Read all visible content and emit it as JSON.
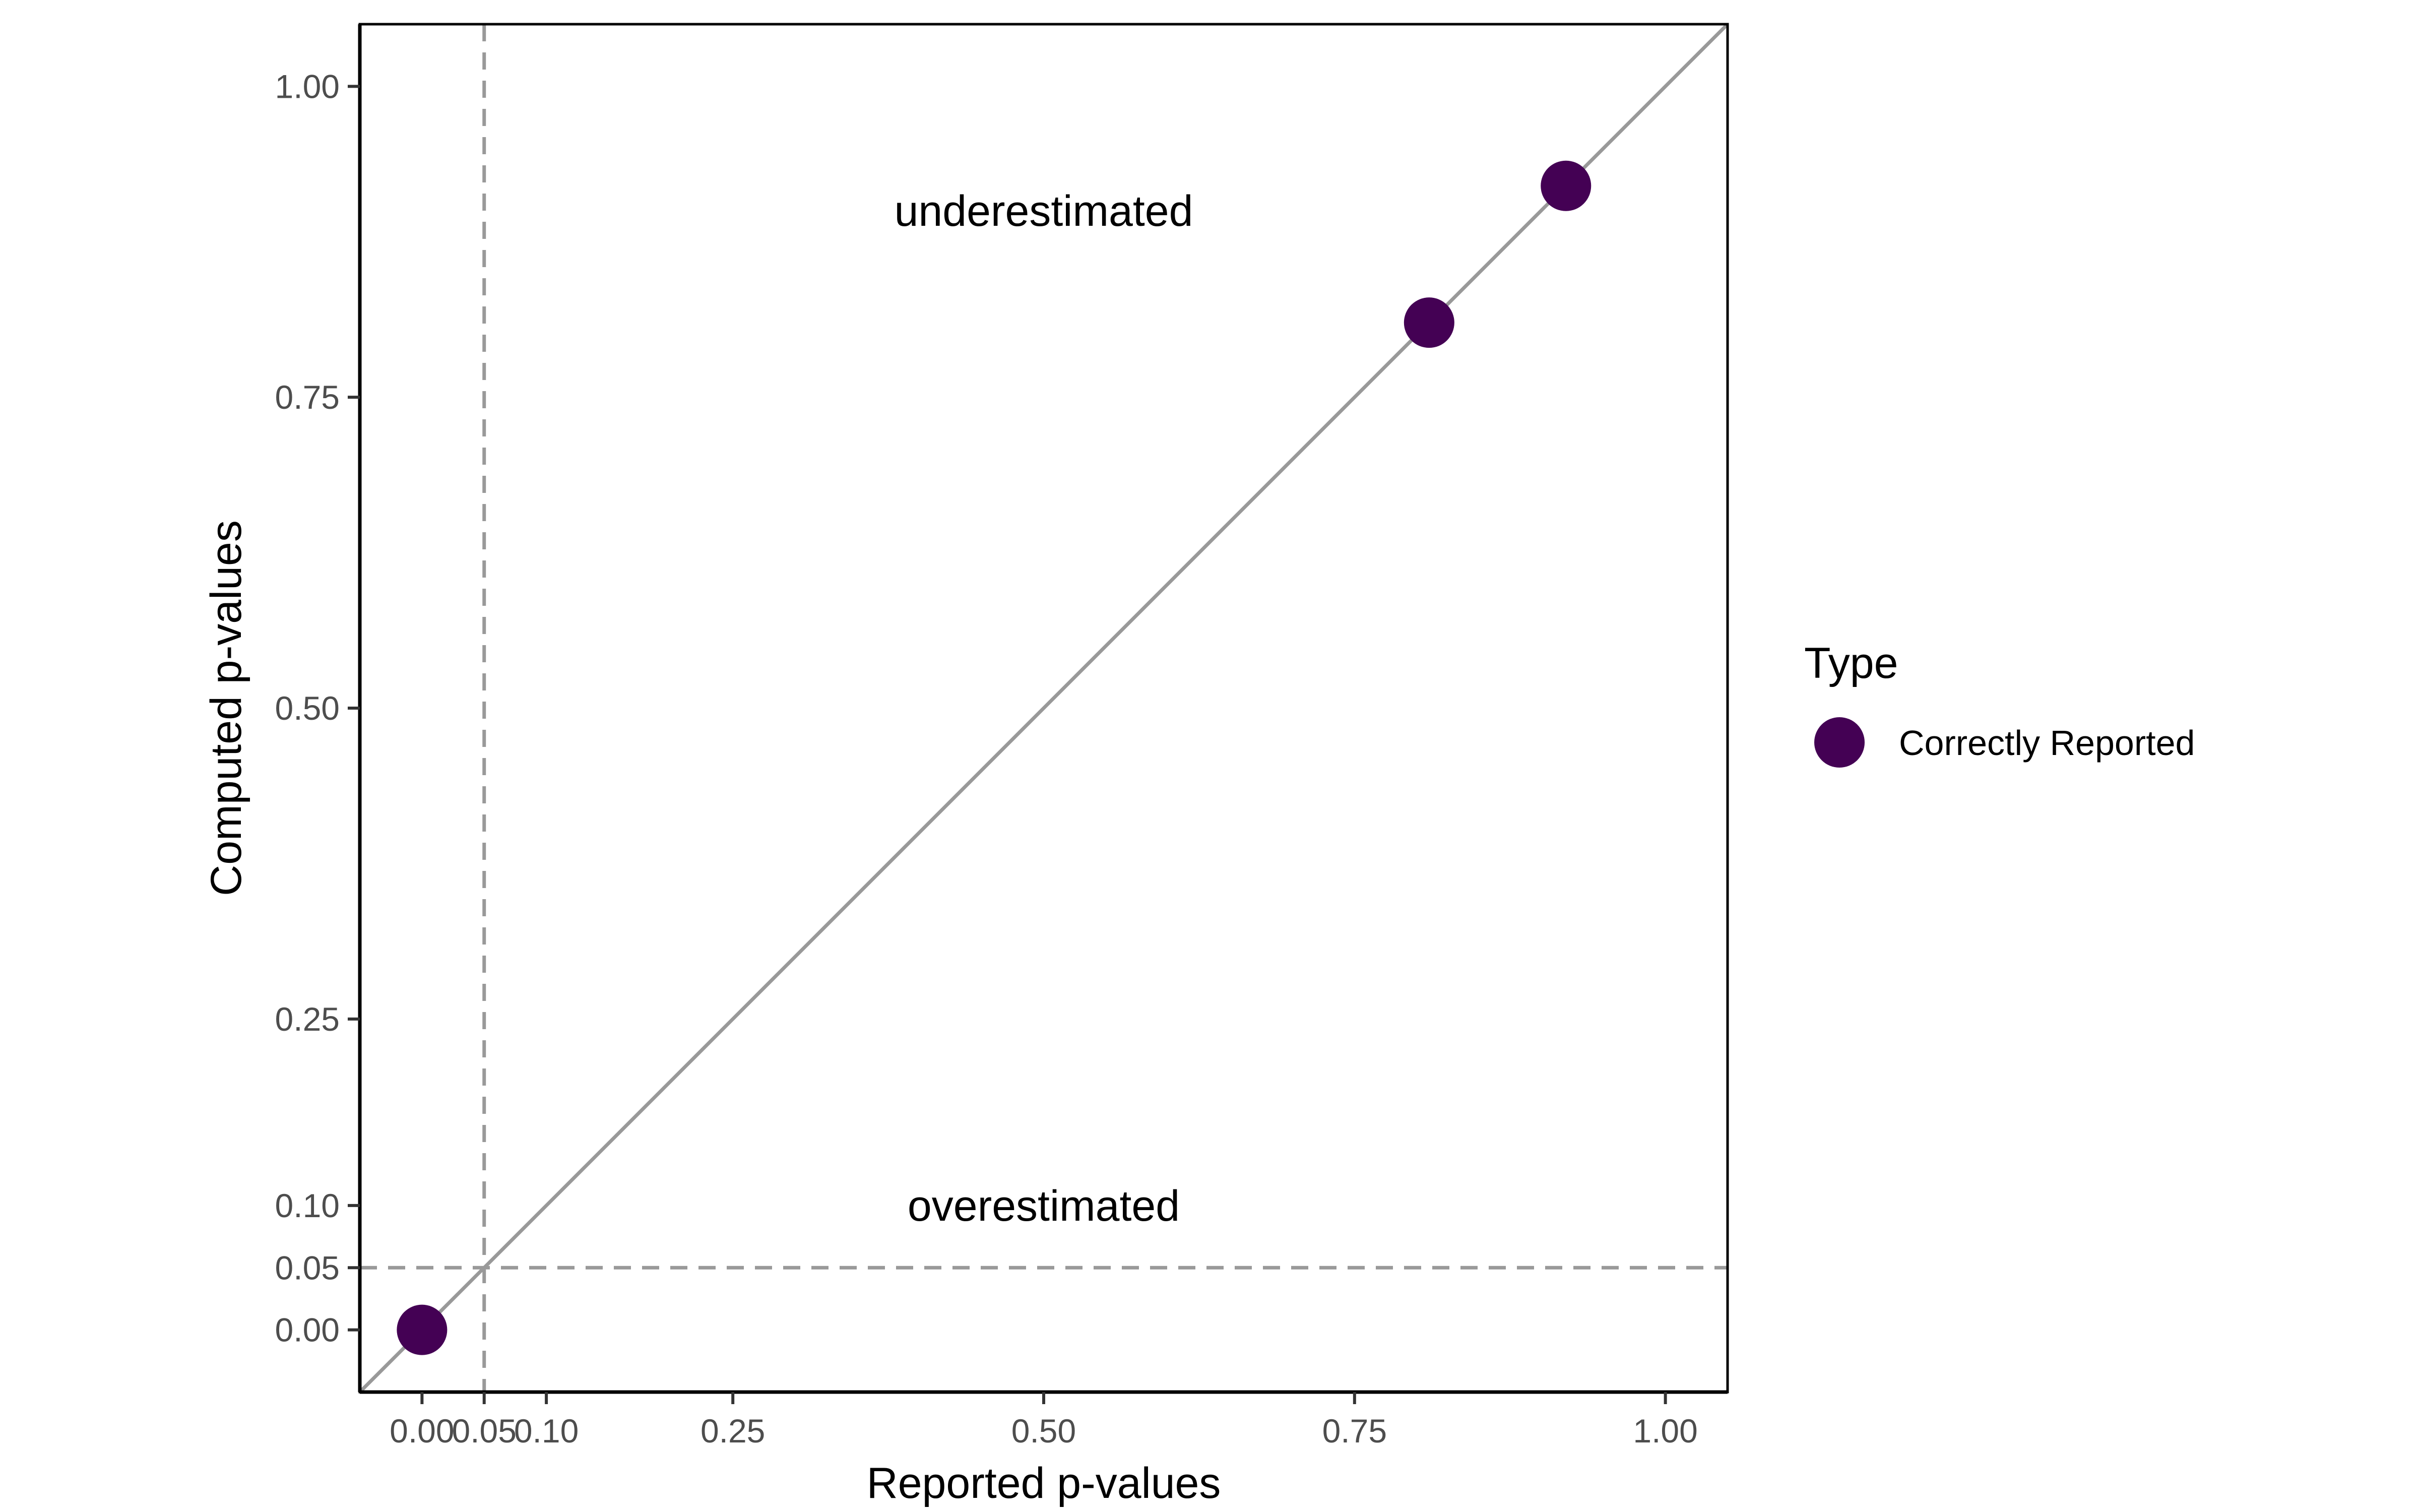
{
  "chart_data": {
    "type": "scatter",
    "xlabel": "Reported p-values",
    "ylabel": "Computed p-values",
    "xlim": [
      -0.05,
      1.05
    ],
    "ylim": [
      -0.05,
      1.05
    ],
    "x_ticks": [
      0.0,
      0.05,
      0.1,
      0.25,
      0.5,
      0.75,
      1.0
    ],
    "x_tick_labels": [
      "0.00",
      "0.05",
      "0.10",
      "0.25",
      "0.50",
      "0.75",
      "1.00"
    ],
    "y_ticks": [
      0.0,
      0.05,
      0.1,
      0.25,
      0.5,
      0.75,
      1.0
    ],
    "y_tick_labels": [
      "0.00",
      "0.05",
      "0.10",
      "0.25",
      "0.50",
      "0.75",
      "1.00"
    ],
    "reference_lines": {
      "diagonal": "y = x",
      "vertical_dashed_x": 0.05,
      "horizontal_dashed_y": 0.05
    },
    "annotations": [
      {
        "text": "underestimated",
        "x": 0.5,
        "y": 0.9
      },
      {
        "text": "overestimated",
        "x": 0.5,
        "y": 0.1
      }
    ],
    "series": [
      {
        "name": "Correctly Reported",
        "color": "#440154",
        "x": [
          0.0,
          0.81,
          0.92
        ],
        "y": [
          0.0,
          0.81,
          0.92
        ]
      }
    ],
    "legend": {
      "title": "Type",
      "position": "right"
    },
    "grid": false
  }
}
